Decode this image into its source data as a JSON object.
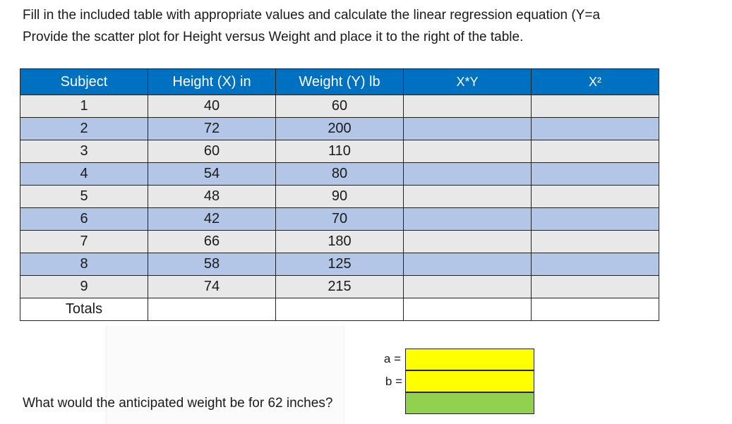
{
  "instructions": {
    "line1": "Fill in the included table with appropriate values and calculate the linear regression equation (Y=a",
    "line2": "Provide the scatter plot for Height versus Weight and place it to the right of the table."
  },
  "table": {
    "headers": [
      "Subject",
      "Height (X) in",
      "Weight (Y) lb",
      "X*Y",
      "X²"
    ],
    "rows": [
      {
        "subject": "1",
        "height": "40",
        "weight": "60"
      },
      {
        "subject": "2",
        "height": "72",
        "weight": "200"
      },
      {
        "subject": "3",
        "height": "60",
        "weight": "110"
      },
      {
        "subject": "4",
        "height": "54",
        "weight": "80"
      },
      {
        "subject": "5",
        "height": "48",
        "weight": "90"
      },
      {
        "subject": "6",
        "height": "42",
        "weight": "70"
      },
      {
        "subject": "7",
        "height": "66",
        "weight": "180"
      },
      {
        "subject": "8",
        "height": "58",
        "weight": "125"
      },
      {
        "subject": "9",
        "height": "74",
        "weight": "215"
      }
    ],
    "totals_label": "Totals"
  },
  "coefficients": {
    "a_label": "a =",
    "b_label": "b =",
    "a_color": "#ffff00",
    "b_color": "#ffff00",
    "answer_color": "#92d050"
  },
  "question": "What would the anticipated weight be for 62 inches?",
  "colors": {
    "header_bg": "#0070c0",
    "row_odd": "#e8e8e8",
    "row_even": "#b4c6e7"
  }
}
